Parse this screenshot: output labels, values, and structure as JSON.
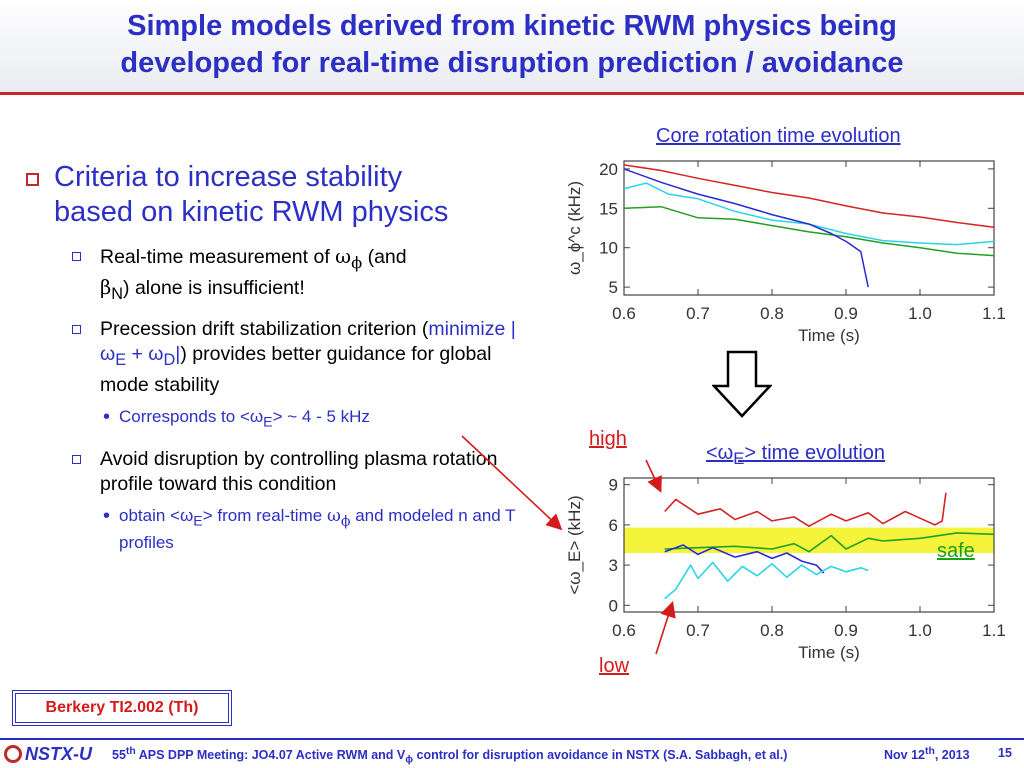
{
  "title": {
    "line1": "Simple models derived from kinetic RWM physics being",
    "line2": "developed for real-time disruption prediction / avoidance"
  },
  "bullets": {
    "main": {
      "line1": "Criteria to increase stability",
      "line2": "based on kinetic RWM physics"
    },
    "b1": {
      "pre": "Real-time measurement of ",
      "omega": "ω",
      "phi": "ϕ",
      "mid": " (and",
      "beta": "β",
      "sub_n": "N",
      "post": ") alone is insufficient!"
    },
    "b2": {
      "pre": "Precession drift stabilization criterion (",
      "minimize": "minimize |ω",
      "sub_e": "E",
      "plus": " + ω",
      "sub_d": "D",
      "bar": "|",
      "post": ") provides better guidance for global mode stability"
    },
    "b2_sub": {
      "pre": "Corresponds to <ω",
      "sub_e": "E",
      "post": "> ~ 4 - 5 kHz"
    },
    "b3": {
      "text": "Avoid disruption by controlling plasma rotation profile toward this condition"
    },
    "b3_sub": {
      "pre": "obtain <ω",
      "sub_e": "E",
      "mid": "> from real-time ",
      "omega": "ω",
      "phi": "ϕ",
      "post": " and modeled n and T profiles"
    }
  },
  "labels": {
    "core_rotation": "Core rotation time evolution",
    "we_pre": "<ω",
    "we_sub": "E",
    "we_post": "> time evolution",
    "high": "high",
    "low": "low",
    "safe": "safe"
  },
  "reference": "Berkery TI2.002 (Th)",
  "footer": {
    "logo": "NSTX-U",
    "meeting_pre": "55",
    "meeting_sup": "th",
    "meeting_mid": " APS DPP Meeting: JO4.07 Active RWM and V",
    "meeting_sub": "ϕ",
    "meeting_post": " control for disruption avoidance in NSTX (S.A. Sabbagh, et al.)",
    "date_pre": "Nov 12",
    "date_sup": "th",
    "date_post": ", 2013",
    "page": "15"
  },
  "colors": {
    "title_blue": "#2b2fc4",
    "accent_red": "#c0282d",
    "safe_band": "#f4f43a",
    "series_red": "#d42424",
    "series_green": "#22a022",
    "series_cyan": "#29d5e6",
    "series_blue": "#2a2ad2"
  },
  "chart_data": [
    {
      "type": "line",
      "title": "Core rotation time evolution",
      "xlabel": "Time (s)",
      "ylabel": "ω_ϕ^c (kHz)",
      "xlim": [
        0.6,
        1.1
      ],
      "ylim": [
        4,
        21
      ],
      "xticks": [
        "0.6",
        "0.7",
        "0.8",
        "0.9",
        "1.0",
        "1.1"
      ],
      "yticks": [
        "5",
        "10",
        "15",
        "20"
      ],
      "series": [
        {
          "color": "red",
          "x": [
            0.6,
            0.65,
            0.7,
            0.75,
            0.8,
            0.85,
            0.9,
            0.95,
            1.0,
            1.05,
            1.1
          ],
          "y": [
            20.5,
            19.8,
            18.8,
            17.9,
            17.0,
            16.3,
            15.3,
            14.4,
            13.9,
            13.2,
            12.6
          ]
        },
        {
          "color": "cyan",
          "x": [
            0.6,
            0.63,
            0.66,
            0.7,
            0.75,
            0.8,
            0.85,
            0.9,
            0.95,
            1.0,
            1.05,
            1.1
          ],
          "y": [
            17.5,
            18.2,
            16.8,
            16.2,
            14.6,
            13.5,
            13.0,
            11.8,
            10.9,
            10.6,
            10.4,
            10.8
          ]
        },
        {
          "color": "green",
          "x": [
            0.6,
            0.65,
            0.7,
            0.75,
            0.8,
            0.85,
            0.9,
            0.95,
            1.0,
            1.05,
            1.1
          ],
          "y": [
            15.0,
            15.2,
            13.8,
            13.6,
            12.8,
            12.0,
            11.4,
            10.6,
            10.0,
            9.3,
            9.0
          ]
        },
        {
          "color": "blue",
          "x": [
            0.6,
            0.65,
            0.7,
            0.75,
            0.8,
            0.85,
            0.88,
            0.9,
            0.92,
            0.93
          ],
          "y": [
            20.0,
            18.3,
            16.8,
            15.6,
            14.2,
            13.0,
            11.8,
            10.8,
            9.5,
            5.0
          ]
        }
      ]
    },
    {
      "type": "line",
      "title": "<ω_E> time evolution",
      "xlabel": "Time (s)",
      "ylabel": "<ω_E> (kHz)",
      "xlim": [
        0.6,
        1.1
      ],
      "ylim": [
        -0.5,
        9.5
      ],
      "xticks": [
        "0.6",
        "0.7",
        "0.8",
        "0.9",
        "1.0",
        "1.1"
      ],
      "yticks": [
        "0",
        "3",
        "6",
        "9"
      ],
      "safe_band": [
        3.9,
        5.8
      ],
      "series": [
        {
          "color": "red",
          "x": [
            0.655,
            0.67,
            0.7,
            0.73,
            0.75,
            0.78,
            0.8,
            0.83,
            0.85,
            0.88,
            0.9,
            0.93,
            0.95,
            0.98,
            1.0,
            1.02,
            1.03,
            1.035
          ],
          "y": [
            7.0,
            7.9,
            6.8,
            7.2,
            6.4,
            7.0,
            6.3,
            6.6,
            5.9,
            6.8,
            6.3,
            6.9,
            6.1,
            7.0,
            6.5,
            6.0,
            6.3,
            8.4
          ]
        },
        {
          "color": "green",
          "x": [
            0.655,
            0.7,
            0.75,
            0.8,
            0.83,
            0.85,
            0.88,
            0.9,
            0.93,
            0.95,
            1.0,
            1.05,
            1.1
          ],
          "y": [
            4.2,
            4.3,
            4.4,
            4.2,
            4.6,
            4.0,
            5.2,
            4.2,
            5.0,
            4.8,
            5.0,
            5.4,
            5.3
          ]
        },
        {
          "color": "blue",
          "x": [
            0.655,
            0.68,
            0.7,
            0.72,
            0.75,
            0.78,
            0.8,
            0.82,
            0.84,
            0.86,
            0.87
          ],
          "y": [
            4.0,
            4.5,
            3.8,
            4.3,
            3.6,
            4.0,
            3.5,
            3.9,
            3.3,
            3.0,
            2.4
          ]
        },
        {
          "color": "cyan",
          "x": [
            0.655,
            0.67,
            0.69,
            0.7,
            0.72,
            0.74,
            0.76,
            0.78,
            0.8,
            0.82,
            0.84,
            0.86,
            0.88,
            0.9,
            0.92,
            0.93
          ],
          "y": [
            0.5,
            1.2,
            3.0,
            2.0,
            3.2,
            1.8,
            2.9,
            2.2,
            3.1,
            2.1,
            3.0,
            2.3,
            2.9,
            2.5,
            2.8,
            2.6
          ]
        }
      ]
    }
  ]
}
